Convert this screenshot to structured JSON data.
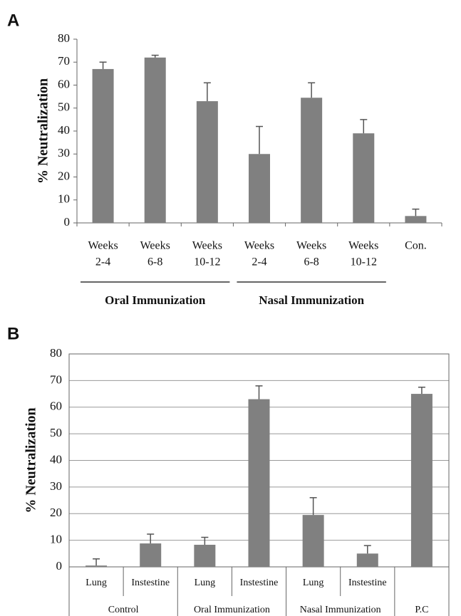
{
  "chart_data": [
    {
      "type": "bar",
      "panel": "A",
      "ylabel": "% Neutralization",
      "color": "#808080",
      "grid": false,
      "categories": [
        [
          "Weeks",
          "2-4"
        ],
        [
          "Weeks",
          "6-8"
        ],
        [
          "Weeks",
          "10-12"
        ],
        [
          "Weeks",
          "2-4"
        ],
        [
          "Weeks",
          "6-8"
        ],
        [
          "Weeks",
          "10-12"
        ],
        [
          "Con."
        ]
      ],
      "groups": [
        "Oral Immunization",
        "Oral Immunization",
        "Oral Immunization",
        "Nasal Immunization",
        "Nasal Immunization",
        "Nasal Immunization",
        null
      ],
      "values": [
        67,
        72,
        53,
        30,
        54.5,
        39,
        3
      ],
      "errors": [
        3,
        1,
        8,
        12,
        6.5,
        6,
        3
      ],
      "ylim": [
        0,
        80
      ],
      "yticks": [
        0,
        10,
        20,
        30,
        40,
        50,
        60,
        70,
        80
      ]
    },
    {
      "type": "bar",
      "panel": "B",
      "ylabel": "% Neutralization",
      "color": "#808080",
      "grid": true,
      "categories": [
        "Lung",
        "Instestine",
        "Lung",
        "Instestine",
        "Lung",
        "Instestine",
        null
      ],
      "groups": [
        "Control",
        "Control",
        "Oral Immunization",
        "Oral Immunization",
        "Nasal Immunization",
        "Nasal Immunization",
        "P.C"
      ],
      "values": [
        0.5,
        8.8,
        8.3,
        63,
        19.5,
        5,
        65
      ],
      "errors": [
        2.5,
        3.5,
        2.8,
        5,
        6.5,
        3,
        2.5
      ],
      "ylim": [
        0,
        80
      ],
      "yticks": [
        0,
        10,
        20,
        30,
        40,
        50,
        60,
        70,
        80
      ]
    }
  ]
}
